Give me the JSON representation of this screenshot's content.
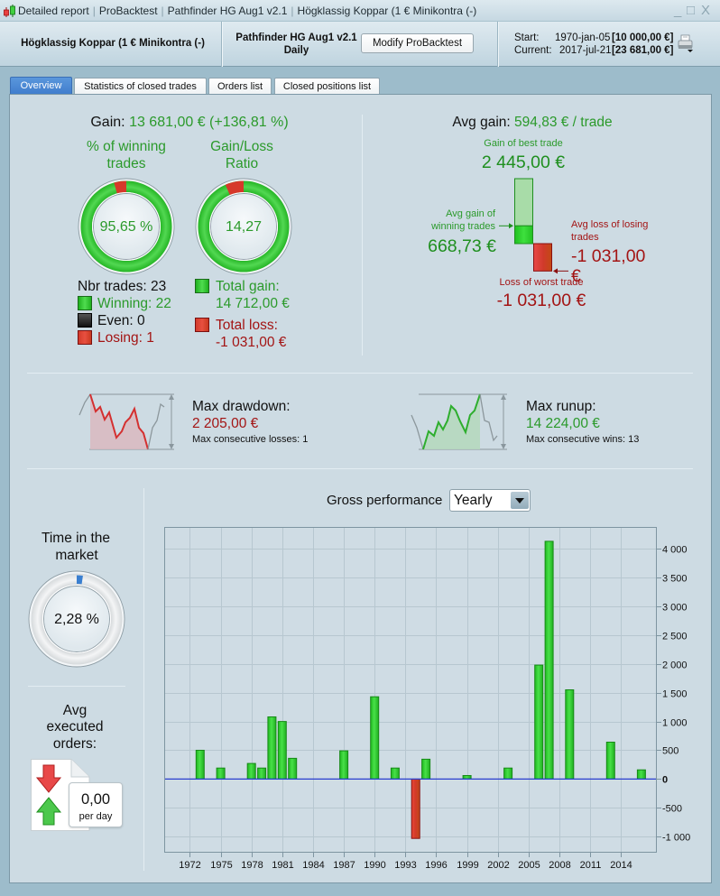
{
  "window": {
    "title_parts": [
      "Detailed report",
      "ProBacktest",
      "Pathfinder HG Aug1 v2.1",
      "Högklassig Koppar (1 € Minikontra (-)"
    ],
    "controls": {
      "minimize": "_",
      "maximize": "□",
      "close": "X"
    }
  },
  "header": {
    "instrument": "Högklassig Koppar (1 € Minikontra (-)",
    "system_name": "Pathfinder HG Aug1 v2.1",
    "timeframe": "Daily",
    "modify_button": "Modify ProBacktest",
    "start_label": "Start:",
    "start_date": "1970-jan-05",
    "start_value": "[10 000,00 €]",
    "current_label": "Current:",
    "current_date": "2017-jul-21",
    "current_value": "[23 681,00 €]",
    "print_icon": "printer-icon"
  },
  "tabs": [
    {
      "label": "Overview",
      "active": true
    },
    {
      "label": "Statistics of closed trades",
      "active": false
    },
    {
      "label": "Orders list",
      "active": false
    },
    {
      "label": "Closed positions list",
      "active": false
    }
  ],
  "overview": {
    "gain": {
      "label": "Gain:",
      "value": "13 681,00 € (+136,81 %)"
    },
    "winning_pct": {
      "title_line1": "% of winning",
      "title_line2": "trades",
      "value_text": "95,65 %",
      "fraction": 0.9565
    },
    "gain_loss_ratio": {
      "title_line1": "Gain/Loss",
      "title_line2": "Ratio",
      "value_text": "14,27",
      "fraction": 0.9345
    },
    "trades": {
      "nbr": "Nbr trades: 23",
      "winning": "Winning: 22",
      "even": "Even: 0",
      "losing": "Losing: 1"
    },
    "totals": {
      "gain_label": "Total gain:",
      "gain_value": "14 712,00 €",
      "loss_label": "Total loss:",
      "loss_value": "-1 031,00 €"
    },
    "avg_gain": {
      "label": "Avg gain:",
      "value": "594,83 € / trade",
      "best_trade_label": "Gain of best trade",
      "best_trade_text": "2 445,00 €",
      "best_trade_value": 2445.0,
      "avg_win_label_line1": "Avg gain of",
      "avg_win_label_line2": "winning trades",
      "avg_win_text": "668,73 €",
      "avg_win_value": 668.73,
      "avg_loss_label_line1": "Avg loss of losing",
      "avg_loss_label_line2": "trades",
      "avg_loss_text": "-1 031,00 €",
      "avg_loss_value": -1031.0,
      "worst_trade_label": "Loss of worst trade",
      "worst_trade_text": "-1 031,00 €",
      "worst_trade_value": -1031.0
    },
    "drawdown": {
      "label": "Max drawdown:",
      "value": "2 205,00 €",
      "sub": "Max consecutive losses: 1"
    },
    "runup": {
      "label": "Max runup:",
      "value": "14 224,00 €",
      "sub": "Max consecutive wins: 13"
    },
    "time_in_market": {
      "title_line1": "Time in the",
      "title_line2": "market",
      "value_text": "2,28 %",
      "fraction": 0.0228
    },
    "avg_orders": {
      "title_line1": "Avg",
      "title_line2": "executed",
      "title_line3": "orders:",
      "value": "0,00",
      "unit": "per day"
    },
    "performance": {
      "label": "Gross performance",
      "period_selected": "Yearly"
    }
  },
  "colors": {
    "gain_green": "#2b9a2b",
    "loss_red": "#a31414",
    "bar_green": "#2ecc2e",
    "bar_red": "#d04028",
    "zero_line": "#2a3ecf",
    "time_in_market_blue": "#3a7fd0",
    "active_tab": "#4a88d4"
  },
  "chart_data": {
    "type": "bar",
    "title": "Gross performance",
    "period": "Yearly",
    "xlabel": "",
    "ylabel": "",
    "categories": [
      1973,
      1975,
      1978,
      1979,
      1980,
      1981,
      1982,
      1987,
      1990,
      1992,
      1994,
      1995,
      1999,
      2003,
      2006,
      2007,
      2009,
      2013,
      2016
    ],
    "values": [
      500,
      190,
      270,
      190,
      1080,
      1000,
      360,
      490,
      1430,
      190,
      -1031,
      345,
      60,
      190,
      1980,
      4130,
      1550,
      640,
      160
    ],
    "xlim": [
      1969.5,
      2017.5
    ],
    "ylim": [
      -1280,
      4380
    ],
    "x_ticks": [
      1972,
      1975,
      1978,
      1981,
      1984,
      1987,
      1990,
      1993,
      1996,
      1999,
      2002,
      2005,
      2008,
      2011,
      2014
    ],
    "y_ticks": [
      -1000,
      -500,
      0,
      500,
      1000,
      1500,
      2000,
      2500,
      3000,
      3500,
      4000
    ],
    "y_tick_labels": [
      "-1 000",
      "-500",
      "0",
      "500",
      "1 000",
      "1 500",
      "2 000",
      "2 500",
      "3 000",
      "3 500",
      "4 000"
    ],
    "y_axis_side": "right",
    "grid": true,
    "legend": "none"
  }
}
